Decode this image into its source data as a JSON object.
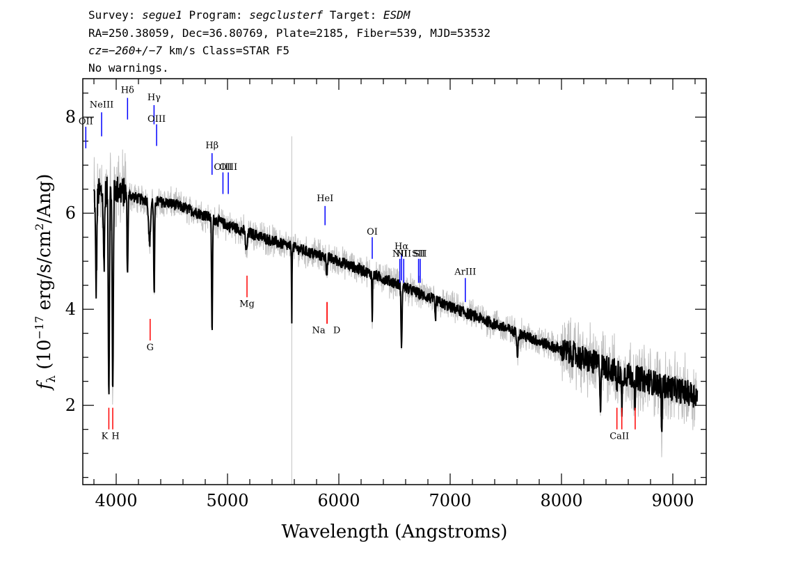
{
  "header": {
    "line1": [
      {
        "text": "Survey: ",
        "italic": false
      },
      {
        "text": "segue1",
        "italic": true
      },
      {
        "text": " Program: ",
        "italic": false
      },
      {
        "text": "segclusterf",
        "italic": true
      },
      {
        "text": " Target: ",
        "italic": false
      },
      {
        "text": "ESDM",
        "italic": true
      }
    ],
    "line2": "RA=250.38059, Dec=36.80769, Plate=2185, Fiber=539, MJD=53532",
    "line3": [
      {
        "text": "cz=−260+/−7",
        "italic": true
      },
      {
        "text": " km/s Class=STAR F5",
        "italic": false
      }
    ],
    "line4": "No warnings."
  },
  "chart_data": {
    "type": "line",
    "xlabel": "Wavelength (Angstroms)",
    "ylabel": "f_λ (10^-17 erg/s/cm^2/Ang)",
    "ylabel_parts": {
      "f": "f",
      "sub": "λ",
      "pre": " (10",
      "exp1": "−17",
      "mid": " erg/s/cm",
      "exp2": "2",
      "post": "/Ang)"
    },
    "xlim": [
      3700,
      9300
    ],
    "ylim": [
      0.35,
      8.8
    ],
    "xticks": [
      4000,
      5000,
      6000,
      7000,
      8000,
      9000
    ],
    "xtick_labels": [
      "4000",
      "5000",
      "6000",
      "7000",
      "8000",
      "9000"
    ],
    "yticks": [
      2,
      4,
      6,
      8
    ],
    "ytick_labels": [
      "2",
      "4",
      "6",
      "8"
    ],
    "x_minor_step": 200,
    "y_minor_step": 0.5,
    "colors": {
      "flux": "#000000",
      "error": "#c0c0c0",
      "emission": "#0000ff",
      "absorption": "#ff0000"
    },
    "continuum": [
      [
        3800,
        6.4
      ],
      [
        4000,
        6.5
      ],
      [
        4200,
        6.3
      ],
      [
        4500,
        6.2
      ],
      [
        4800,
        5.95
      ],
      [
        5000,
        5.75
      ],
      [
        5500,
        5.35
      ],
      [
        6000,
        5.0
      ],
      [
        6500,
        4.55
      ],
      [
        7000,
        4.05
      ],
      [
        7500,
        3.6
      ],
      [
        8000,
        3.15
      ],
      [
        8500,
        2.7
      ],
      [
        9000,
        2.35
      ],
      [
        9220,
        2.2
      ]
    ],
    "absorption_features": [
      {
        "x": 3820,
        "depth": 2.0,
        "width": 8
      },
      {
        "x": 3890,
        "depth": 1.5,
        "width": 8
      },
      {
        "x": 3934,
        "depth": 4.2,
        "width": 7
      },
      {
        "x": 3969,
        "depth": 4.3,
        "width": 7
      },
      {
        "x": 4102,
        "depth": 1.7,
        "width": 6
      },
      {
        "x": 4300,
        "depth": 0.9,
        "width": 12
      },
      {
        "x": 4341,
        "depth": 2.0,
        "width": 6
      },
      {
        "x": 4861,
        "depth": 2.4,
        "width": 6
      },
      {
        "x": 5170,
        "depth": 0.4,
        "width": 12
      },
      {
        "x": 5577,
        "depth": 1.6,
        "width": 3
      },
      {
        "x": 5893,
        "depth": 0.3,
        "width": 8
      },
      {
        "x": 6300,
        "depth": 1.0,
        "width": 4
      },
      {
        "x": 6563,
        "depth": 1.4,
        "width": 6
      },
      {
        "x": 6867,
        "depth": 0.4,
        "width": 6
      },
      {
        "x": 7605,
        "depth": 0.4,
        "width": 8
      },
      {
        "x": 8350,
        "depth": 1.0,
        "width": 5
      },
      {
        "x": 8498,
        "depth": 0.4,
        "width": 6
      },
      {
        "x": 8542,
        "depth": 0.7,
        "width": 6
      },
      {
        "x": 8662,
        "depth": 0.6,
        "width": 6
      },
      {
        "x": 8900,
        "depth": 1.1,
        "width": 5
      }
    ],
    "emission_lines": [
      {
        "label": "OII",
        "x": 3727,
        "y_top": 7.8,
        "y_bottom": 7.35,
        "label_y": 7.85
      },
      {
        "label": "NeIII",
        "x": 3869,
        "y_top": 8.1,
        "y_bottom": 7.6,
        "label_y": 8.2
      },
      {
        "label": "Hδ",
        "x": 4102,
        "y_top": 8.4,
        "y_bottom": 7.95,
        "label_y": 8.5
      },
      {
        "label": "Hγ",
        "x": 4340,
        "y_top": 8.25,
        "y_bottom": 7.85,
        "label_y": 8.35
      },
      {
        "label": "OIII",
        "x": 4363,
        "y_top": 7.85,
        "y_bottom": 7.4,
        "label_y": 7.9
      },
      {
        "label": "Hβ",
        "x": 4861,
        "y_top": 7.25,
        "y_bottom": 6.8,
        "label_y": 7.35
      },
      {
        "label": "OIII",
        "x": 4959,
        "y_top": 6.85,
        "y_bottom": 6.4,
        "label_y": 6.9
      },
      {
        "label": "OIII",
        "x": 5007,
        "y_top": 6.85,
        "y_bottom": 6.4,
        "label_y": 6.9
      },
      {
        "label": "HeI",
        "x": 5876,
        "y_top": 6.15,
        "y_bottom": 5.75,
        "label_y": 6.25
      },
      {
        "label": "OI",
        "x": 6300,
        "y_top": 5.5,
        "y_bottom": 5.05,
        "label_y": 5.55
      },
      {
        "label": "NII",
        "x": 6548,
        "y_top": 5.05,
        "y_bottom": 4.55,
        "label_y": 5.1
      },
      {
        "label": "Hα",
        "x": 6563,
        "y_top": 5.15,
        "y_bottom": 4.6,
        "label_y": 5.25
      },
      {
        "label": "NII",
        "x": 6583,
        "y_top": 5.05,
        "y_bottom": 4.55,
        "label_y": 5.1
      },
      {
        "label": "SII",
        "x": 6716,
        "y_top": 5.05,
        "y_bottom": 4.55,
        "label_y": 5.1
      },
      {
        "label": "SII",
        "x": 6731,
        "y_top": 5.05,
        "y_bottom": 4.55,
        "label_y": 5.1
      },
      {
        "label": "ArIII",
        "x": 7136,
        "y_top": 4.65,
        "y_bottom": 4.15,
        "label_y": 4.72
      }
    ],
    "absorption_lines": [
      {
        "label": "K",
        "x": 3934,
        "y_top": 1.95,
        "y_bottom": 1.5,
        "label_y": 1.3
      },
      {
        "label": "H",
        "x": 3969,
        "y_top": 1.95,
        "y_bottom": 1.5,
        "label_y": 1.3
      },
      {
        "label": "G",
        "x": 4305,
        "y_top": 3.8,
        "y_bottom": 3.35,
        "label_y": 3.15
      },
      {
        "label": "Mg",
        "x": 5175,
        "y_top": 4.7,
        "y_bottom": 4.25,
        "label_y": 4.05
      },
      {
        "label": "Na",
        "x": 5894,
        "y_top": 4.15,
        "y_bottom": 3.7,
        "label_y": 3.5
      },
      {
        "label": "D",
        "x": 5894,
        "y_top": 4.15,
        "y_bottom": 3.7,
        "label_y": 3.5
      },
      {
        "label": "CaII",
        "x": 8498,
        "y_top": 1.95,
        "y_bottom": 1.5,
        "label_y": 1.3
      },
      {
        "label": "CaII",
        "x": 8542,
        "y_top": 1.95,
        "y_bottom": 1.5,
        "label_y": 1.3
      },
      {
        "label": "CaII",
        "x": 8662,
        "y_top": 1.95,
        "y_bottom": 1.5,
        "label_y": 1.3
      }
    ]
  }
}
